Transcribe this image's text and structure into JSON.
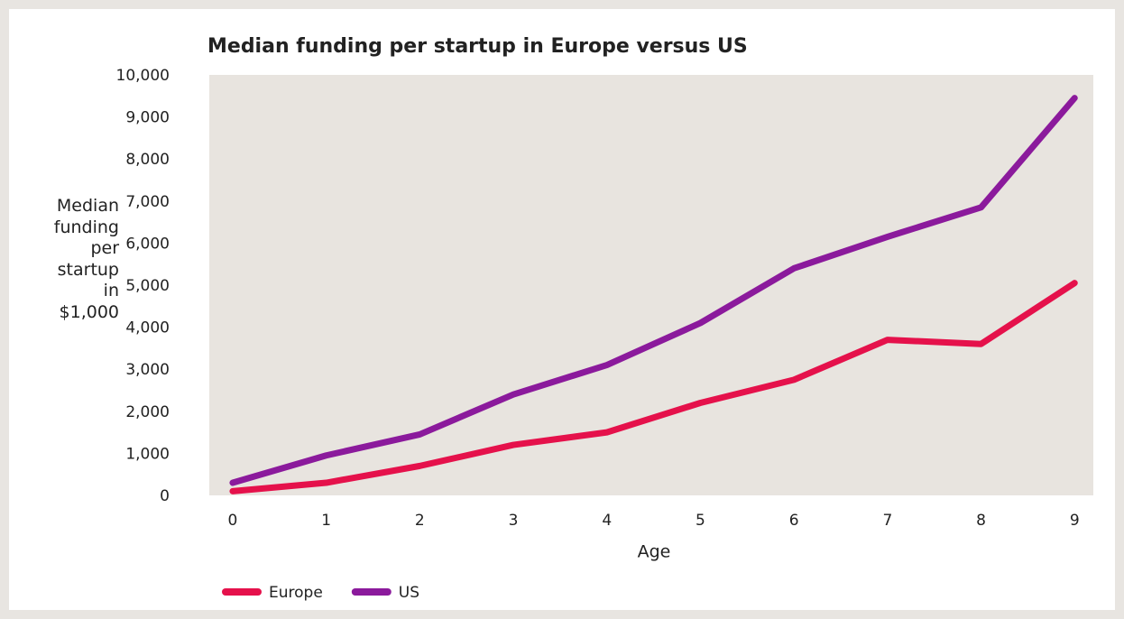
{
  "chart_data": {
    "type": "line",
    "title": "Median funding per startup in Europe versus US",
    "x_label": "Age",
    "y_label": "Median funding per startup in $1,000",
    "x": [
      0,
      1,
      2,
      3,
      4,
      5,
      6,
      7,
      8,
      9
    ],
    "xlim": [
      -0.25,
      9.2
    ],
    "xticks": [
      0,
      1,
      2,
      3,
      4,
      5,
      6,
      7,
      8,
      9
    ],
    "ylim": [
      0,
      10000
    ],
    "yticks": [
      0,
      {
        "value": 1000,
        "label": "1,000"
      },
      {
        "value": 2000,
        "label": "2,000"
      },
      {
        "value": 3000,
        "label": "3,000"
      },
      {
        "value": 4000,
        "label": "4,000"
      },
      {
        "value": 5000,
        "label": "5,000"
      },
      {
        "value": 6000,
        "label": "6,000"
      },
      {
        "value": 7000,
        "label": "7,000"
      },
      {
        "value": 8000,
        "label": "8,000"
      },
      {
        "value": 9000,
        "label": "9,000"
      },
      {
        "value": 10000,
        "label": "10,000"
      }
    ],
    "grid": false,
    "legend": "bottom-left",
    "series": [
      {
        "name": "Europe",
        "color": "#e5114b",
        "values": [
          100,
          300,
          700,
          1200,
          1500,
          2200,
          2750,
          3700,
          3600,
          5050
        ]
      },
      {
        "name": "US",
        "color": "#8b1a9c",
        "values": [
          300,
          950,
          1450,
          2400,
          3100,
          4100,
          5400,
          6150,
          6850,
          9450
        ]
      }
    ]
  }
}
